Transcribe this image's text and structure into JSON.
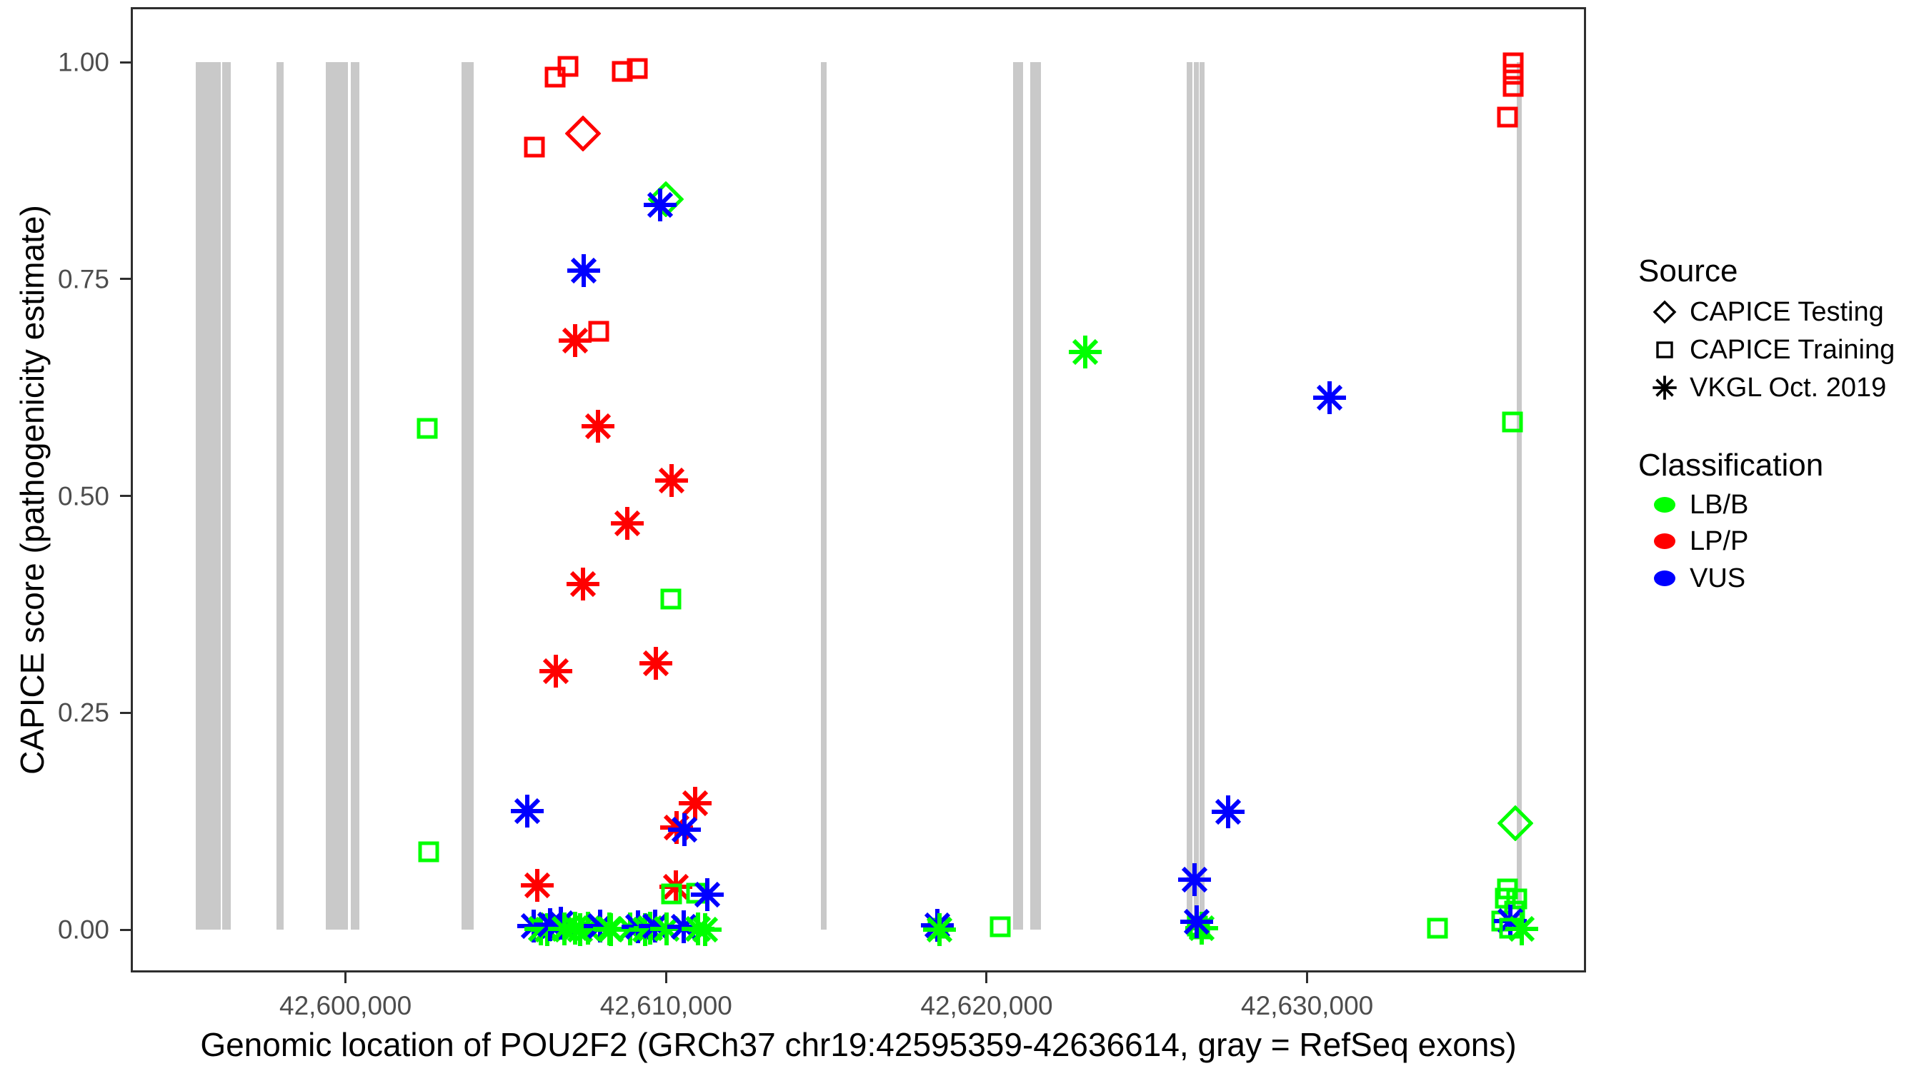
{
  "figure": {
    "x_axis_title": "Genomic location of POU2F2 (GRCh37 chr19:42595359-42636614, gray = RefSeq exons)",
    "y_axis_title": "CAPICE score (pathogenicity estimate)"
  },
  "colors": {
    "lbb_green": "#00FF00",
    "lpp_red": "#FF0000",
    "vus_blue": "#0000FF",
    "exon_gray": "#C9C9C9",
    "tick_label_gray": "#4D4D4D",
    "axis_dark": "#2e2e2e"
  },
  "legend": {
    "source": {
      "title": "Source",
      "items": [
        {
          "label": "CAPICE Testing",
          "shape": "diamond"
        },
        {
          "label": "CAPICE Training",
          "shape": "square"
        },
        {
          "label": "VKGL Oct. 2019",
          "shape": "asterisk"
        }
      ]
    },
    "classification": {
      "title": "Classification",
      "items": [
        {
          "label": "LB/B",
          "color": "#00FF00"
        },
        {
          "label": "LP/P",
          "color": "#FF0000"
        },
        {
          "label": "VUS",
          "color": "#0000FF"
        }
      ]
    }
  },
  "chart_data": {
    "type": "scatter",
    "title": "",
    "xlabel": "Genomic location of POU2F2 (GRCh37 chr19:42595359-42636614, gray = RefSeq exons)",
    "ylabel": "CAPICE score (pathogenicity estimate)",
    "gene_range": [
      42595359,
      42636614
    ],
    "x_render_range": [
      42593300,
      42638700
    ],
    "y_render_range": [
      -0.049,
      1.063
    ],
    "ylim": [
      0,
      1
    ],
    "grid": false,
    "legend_position": "right",
    "x_ticks": [
      {
        "value": 42600000,
        "label": "42,600,000"
      },
      {
        "value": 42610000,
        "label": "42,610,000"
      },
      {
        "value": 42620000,
        "label": "42,620,000"
      },
      {
        "value": 42630000,
        "label": "42,630,000"
      }
    ],
    "y_ticks": [
      {
        "value": 0.0,
        "label": "0.00"
      },
      {
        "value": 0.25,
        "label": "0.25"
      },
      {
        "value": 0.5,
        "label": "0.50"
      },
      {
        "value": 0.75,
        "label": "0.75"
      },
      {
        "value": 1.0,
        "label": "1.00"
      }
    ],
    "exons": [
      {
        "start": 42595330,
        "end": 42596110
      },
      {
        "start": 42596150,
        "end": 42596420
      },
      {
        "start": 42597850,
        "end": 42598070
      },
      {
        "start": 42599390,
        "end": 42600080
      },
      {
        "start": 42600170,
        "end": 42600430
      },
      {
        "start": 42603620,
        "end": 42604000
      },
      {
        "start": 42614830,
        "end": 42615010
      },
      {
        "start": 42620830,
        "end": 42621140
      },
      {
        "start": 42621360,
        "end": 42621700
      },
      {
        "start": 42626240,
        "end": 42626420
      },
      {
        "start": 42626470,
        "end": 42626620
      },
      {
        "start": 42626640,
        "end": 42626800
      },
      {
        "start": 42636540,
        "end": 42636690
      }
    ],
    "points": [
      {
        "pos": 42606940,
        "score": 0.995,
        "source": "CAPICE Training",
        "cls": "LP/P"
      },
      {
        "pos": 42609100,
        "score": 0.993,
        "source": "CAPICE Training",
        "cls": "LP/P"
      },
      {
        "pos": 42608630,
        "score": 0.989,
        "source": "CAPICE Training",
        "cls": "LP/P"
      },
      {
        "pos": 42606540,
        "score": 0.983,
        "source": "CAPICE Training",
        "cls": "LP/P"
      },
      {
        "pos": 42605900,
        "score": 0.902,
        "source": "CAPICE Training",
        "cls": "LP/P"
      },
      {
        "pos": 42607410,
        "score": 0.918,
        "source": "CAPICE Testing",
        "cls": "LP/P"
      },
      {
        "pos": 42636430,
        "score": 0.999,
        "source": "CAPICE Training",
        "cls": "LP/P"
      },
      {
        "pos": 42636430,
        "score": 0.986,
        "source": "CAPICE Training",
        "cls": "LP/P"
      },
      {
        "pos": 42636430,
        "score": 0.972,
        "source": "CAPICE Training",
        "cls": "LP/P"
      },
      {
        "pos": 42636250,
        "score": 0.937,
        "source": "CAPICE Training",
        "cls": "LP/P"
      },
      {
        "pos": 42609990,
        "score": 0.842,
        "source": "CAPICE Testing",
        "cls": "LB/B"
      },
      {
        "pos": 42609820,
        "score": 0.835,
        "source": "VKGL Oct. 2019",
        "cls": "VUS"
      },
      {
        "pos": 42607430,
        "score": 0.76,
        "source": "VKGL Oct. 2019",
        "cls": "VUS"
      },
      {
        "pos": 42607900,
        "score": 0.69,
        "source": "CAPICE Training",
        "cls": "LP/P"
      },
      {
        "pos": 42607160,
        "score": 0.679,
        "source": "VKGL Oct. 2019",
        "cls": "LP/P"
      },
      {
        "pos": 42623080,
        "score": 0.666,
        "source": "VKGL Oct. 2019",
        "cls": "LB/B"
      },
      {
        "pos": 42630700,
        "score": 0.613,
        "source": "VKGL Oct. 2019",
        "cls": "VUS"
      },
      {
        "pos": 42602550,
        "score": 0.578,
        "source": "CAPICE Training",
        "cls": "LB/B"
      },
      {
        "pos": 42607880,
        "score": 0.58,
        "source": "VKGL Oct. 2019",
        "cls": "LP/P"
      },
      {
        "pos": 42636405,
        "score": 0.585,
        "source": "CAPICE Training",
        "cls": "LB/B"
      },
      {
        "pos": 42610170,
        "score": 0.518,
        "source": "VKGL Oct. 2019",
        "cls": "LP/P"
      },
      {
        "pos": 42608790,
        "score": 0.468,
        "source": "VKGL Oct. 2019",
        "cls": "LP/P"
      },
      {
        "pos": 42607410,
        "score": 0.398,
        "source": "VKGL Oct. 2019",
        "cls": "LP/P"
      },
      {
        "pos": 42610150,
        "score": 0.381,
        "source": "CAPICE Training",
        "cls": "LB/B"
      },
      {
        "pos": 42609680,
        "score": 0.307,
        "source": "VKGL Oct. 2019",
        "cls": "LP/P"
      },
      {
        "pos": 42606560,
        "score": 0.298,
        "source": "VKGL Oct. 2019",
        "cls": "LP/P"
      },
      {
        "pos": 42610910,
        "score": 0.146,
        "source": "VKGL Oct. 2019",
        "cls": "LP/P"
      },
      {
        "pos": 42605670,
        "score": 0.137,
        "source": "VKGL Oct. 2019",
        "cls": "VUS"
      },
      {
        "pos": 42627530,
        "score": 0.136,
        "source": "VKGL Oct. 2019",
        "cls": "VUS"
      },
      {
        "pos": 42636490,
        "score": 0.123,
        "source": "CAPICE Testing",
        "cls": "LB/B"
      },
      {
        "pos": 42610330,
        "score": 0.118,
        "source": "VKGL Oct. 2019",
        "cls": "LP/P"
      },
      {
        "pos": 42610570,
        "score": 0.115,
        "source": "VKGL Oct. 2019",
        "cls": "VUS"
      },
      {
        "pos": 42602600,
        "score": 0.09,
        "source": "CAPICE Training",
        "cls": "LB/B"
      },
      {
        "pos": 42626490,
        "score": 0.058,
        "source": "VKGL Oct. 2019",
        "cls": "VUS"
      },
      {
        "pos": 42605980,
        "score": 0.051,
        "source": "VKGL Oct. 2019",
        "cls": "LP/P"
      },
      {
        "pos": 42610310,
        "score": 0.049,
        "source": "VKGL Oct. 2019",
        "cls": "LP/P"
      },
      {
        "pos": 42636250,
        "score": 0.047,
        "source": "CAPICE Training",
        "cls": "LB/B"
      },
      {
        "pos": 42610170,
        "score": 0.041,
        "source": "CAPICE Training",
        "cls": "LB/B"
      },
      {
        "pos": 42610950,
        "score": 0.042,
        "source": "CAPICE Training",
        "cls": "LB/B"
      },
      {
        "pos": 42611290,
        "score": 0.04,
        "source": "VKGL Oct. 2019",
        "cls": "VUS"
      },
      {
        "pos": 42636180,
        "score": 0.036,
        "source": "CAPICE Training",
        "cls": "LB/B"
      },
      {
        "pos": 42636540,
        "score": 0.035,
        "source": "CAPICE Training",
        "cls": "LB/B"
      },
      {
        "pos": 42636470,
        "score": 0.021,
        "source": "CAPICE Training",
        "cls": "LB/B"
      },
      {
        "pos": 42636070,
        "score": 0.01,
        "source": "CAPICE Training",
        "cls": "LB/B"
      },
      {
        "pos": 42636340,
        "score": 0.01,
        "source": "VKGL Oct. 2019",
        "cls": "VUS"
      },
      {
        "pos": 42605870,
        "score": 0.004,
        "source": "VKGL Oct. 2019",
        "cls": "VUS"
      },
      {
        "pos": 42606090,
        "score": 0.001,
        "source": "VKGL Oct. 2019",
        "cls": "LB/B"
      },
      {
        "pos": 42606300,
        "score": 0.0,
        "source": "VKGL Oct. 2019",
        "cls": "LB/B"
      },
      {
        "pos": 42606380,
        "score": 0.006,
        "source": "VKGL Oct. 2019",
        "cls": "VUS"
      },
      {
        "pos": 42606720,
        "score": 0.007,
        "source": "VKGL Oct. 2019",
        "cls": "VUS"
      },
      {
        "pos": 42606830,
        "score": 0.001,
        "source": "VKGL Oct. 2019",
        "cls": "LB/B"
      },
      {
        "pos": 42607160,
        "score": 0.002,
        "source": "VKGL Oct. 2019",
        "cls": "LB/B"
      },
      {
        "pos": 42607320,
        "score": 0.0,
        "source": "VKGL Oct. 2019",
        "cls": "LB/B"
      },
      {
        "pos": 42607570,
        "score": 0.002,
        "source": "VKGL Oct. 2019",
        "cls": "LB/B"
      },
      {
        "pos": 42607940,
        "score": 0.004,
        "source": "VKGL Oct. 2019",
        "cls": "VUS"
      },
      {
        "pos": 42608230,
        "score": 0.001,
        "source": "VKGL Oct. 2019",
        "cls": "LB/B"
      },
      {
        "pos": 42608280,
        "score": 0.0,
        "source": "VKGL Oct. 2019",
        "cls": "LB/B"
      },
      {
        "pos": 42608880,
        "score": 0.001,
        "source": "VKGL Oct. 2019",
        "cls": "LB/B"
      },
      {
        "pos": 42609130,
        "score": 0.003,
        "source": "VKGL Oct. 2019",
        "cls": "VUS"
      },
      {
        "pos": 42609350,
        "score": 0.0,
        "source": "VKGL Oct. 2019",
        "cls": "LB/B"
      },
      {
        "pos": 42609500,
        "score": 0.002,
        "source": "VKGL Oct. 2019",
        "cls": "LB/B"
      },
      {
        "pos": 42609660,
        "score": 0.004,
        "source": "VKGL Oct. 2019",
        "cls": "VUS"
      },
      {
        "pos": 42610020,
        "score": 0.001,
        "source": "VKGL Oct. 2019",
        "cls": "LB/B"
      },
      {
        "pos": 42610550,
        "score": 0.003,
        "source": "VKGL Oct. 2019",
        "cls": "VUS"
      },
      {
        "pos": 42610990,
        "score": 0.001,
        "source": "VKGL Oct. 2019",
        "cls": "LB/B"
      },
      {
        "pos": 42611220,
        "score": 0.0,
        "source": "VKGL Oct. 2019",
        "cls": "LB/B"
      },
      {
        "pos": 42618480,
        "score": 0.002,
        "source": "CAPICE Training",
        "cls": "LB/B"
      },
      {
        "pos": 42618470,
        "score": 0.005,
        "source": "VKGL Oct. 2019",
        "cls": "VUS"
      },
      {
        "pos": 42618520,
        "score": 0.0,
        "source": "VKGL Oct. 2019",
        "cls": "LB/B"
      },
      {
        "pos": 42620420,
        "score": 0.003,
        "source": "CAPICE Training",
        "cls": "LB/B"
      },
      {
        "pos": 42626580,
        "score": 0.004,
        "source": "CAPICE Training",
        "cls": "LB/B"
      },
      {
        "pos": 42626650,
        "score": 0.001,
        "source": "CAPICE Training",
        "cls": "LB/B"
      },
      {
        "pos": 42626710,
        "score": 0.002,
        "source": "VKGL Oct. 2019",
        "cls": "LB/B"
      },
      {
        "pos": 42626560,
        "score": 0.009,
        "source": "VKGL Oct. 2019",
        "cls": "VUS"
      },
      {
        "pos": 42634060,
        "score": 0.002,
        "source": "CAPICE Training",
        "cls": "LB/B"
      },
      {
        "pos": 42636320,
        "score": 0.002,
        "source": "CAPICE Training",
        "cls": "LB/B"
      },
      {
        "pos": 42636690,
        "score": 0.001,
        "source": "VKGL Oct. 2019",
        "cls": "LB/B"
      }
    ]
  }
}
